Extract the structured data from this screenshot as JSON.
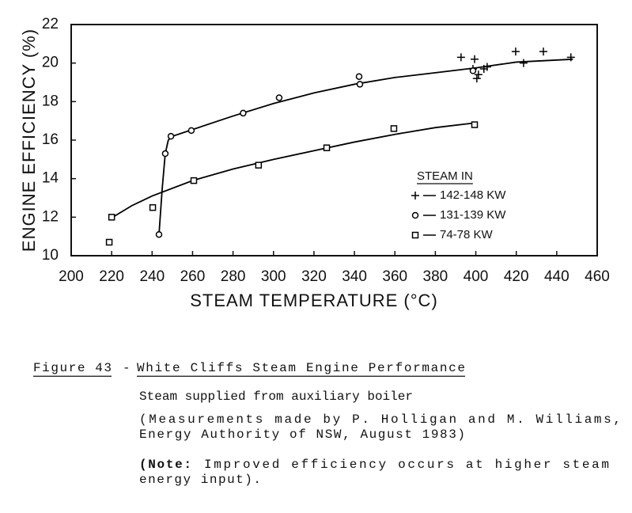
{
  "chart_data": {
    "type": "scatter",
    "x_label": "STEAM TEMPERATURE (°C)",
    "y_label": "ENGINE EFFICIENCY (%)",
    "xlim": [
      200,
      460
    ],
    "ylim": [
      10,
      22
    ],
    "xticks": [
      200,
      220,
      240,
      260,
      280,
      300,
      320,
      340,
      360,
      380,
      400,
      420,
      440,
      460
    ],
    "yticks": [
      10,
      12,
      14,
      16,
      18,
      20,
      22
    ],
    "grid": false,
    "legend_title": "STEAM IN",
    "legend_position": "right",
    "series": [
      {
        "name": "142-148 KW",
        "marker": "plus",
        "color": "#000000",
        "x": [
          392.7,
          399.4,
          398.6,
          401.3,
          400.5,
          404,
          405.6,
          419.7,
          423.6,
          433.4,
          447
        ],
        "y": [
          20.3,
          20.2,
          19.7,
          19.4,
          19.2,
          19.7,
          19.8,
          20.6,
          20,
          20.6,
          20.3
        ]
      },
      {
        "name": "131-139 KW",
        "marker": "circle",
        "color": "#000000",
        "x": [
          243.4,
          246.5,
          249.3,
          259.4,
          285,
          302.8,
          342.3,
          342.7,
          398.6
        ],
        "y": [
          11.1,
          15.3,
          16.2,
          16.5,
          17.4,
          18.2,
          19.3,
          18.9,
          19.6
        ],
        "fit": {
          "x": [
            243.4,
            245,
            246.5,
            248,
            250,
            260,
            280,
            300,
            320,
            340,
            360,
            380,
            400,
            420,
            448
          ],
          "y": [
            11.1,
            13.5,
            15.3,
            16,
            16.2,
            16.55,
            17.25,
            17.9,
            18.45,
            18.9,
            19.25,
            19.5,
            19.75,
            20.05,
            20.2
          ]
        }
      },
      {
        "name": "74-78 KW",
        "marker": "square",
        "color": "#000000",
        "x": [
          218.8,
          220,
          240.3,
          260.6,
          292.6,
          326.3,
          359.5,
          399.4
        ],
        "y": [
          10.7,
          12,
          12.5,
          13.9,
          14.7,
          15.6,
          16.6,
          16.8
        ],
        "fit": {
          "x": [
            219,
            230,
            240,
            260,
            280,
            300,
            320,
            340,
            360,
            380,
            400
          ],
          "y": [
            11.9,
            12.6,
            13.1,
            13.9,
            14.5,
            15,
            15.45,
            15.9,
            16.3,
            16.65,
            16.9
          ]
        }
      }
    ]
  },
  "caption": {
    "figure": "Figure 43",
    "dash": "-",
    "title": "White Cliffs Steam Engine Performance",
    "lines": [
      "Steam supplied from auxiliary boiler",
      "(Measurements made by P. Holligan and M. Williams,",
      "Energy Authority of NSW, August 1983)"
    ],
    "note_label": "(Note:",
    "note_text": "Improved efficiency occurs at higher steam",
    "note_end": "energy input)."
  }
}
